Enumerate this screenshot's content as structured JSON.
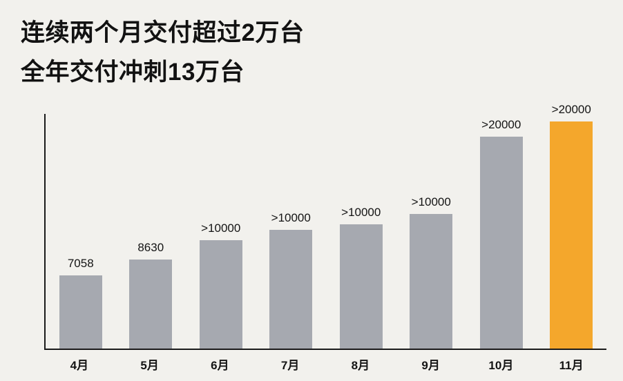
{
  "title": {
    "line1": "连续两个月交付超过2万台",
    "line2": "全年交付冲刺13万台"
  },
  "chart_data": {
    "type": "bar",
    "title": "连续两个月交付超过2万台 全年交付冲刺13万台",
    "xlabel": "",
    "ylabel": "",
    "categories": [
      "4月",
      "5月",
      "6月",
      "7月",
      "8月",
      "9月",
      "10月",
      "11月"
    ],
    "value_labels": [
      "7058",
      "8630",
      ">10000",
      ">10000",
      ">10000",
      ">10000",
      ">20000",
      ">20000"
    ],
    "values": [
      7058,
      8630,
      10500,
      11500,
      12000,
      13000,
      20500,
      22000
    ],
    "ylim": [
      0,
      22700
    ],
    "grid": false,
    "legend": null,
    "highlight_index": 7,
    "colors": {
      "bar": "#A6A9B0",
      "highlight": "#F4A72C",
      "axis": "#1A1A1A",
      "background": "#F2F1ED",
      "text": "#141414"
    }
  }
}
